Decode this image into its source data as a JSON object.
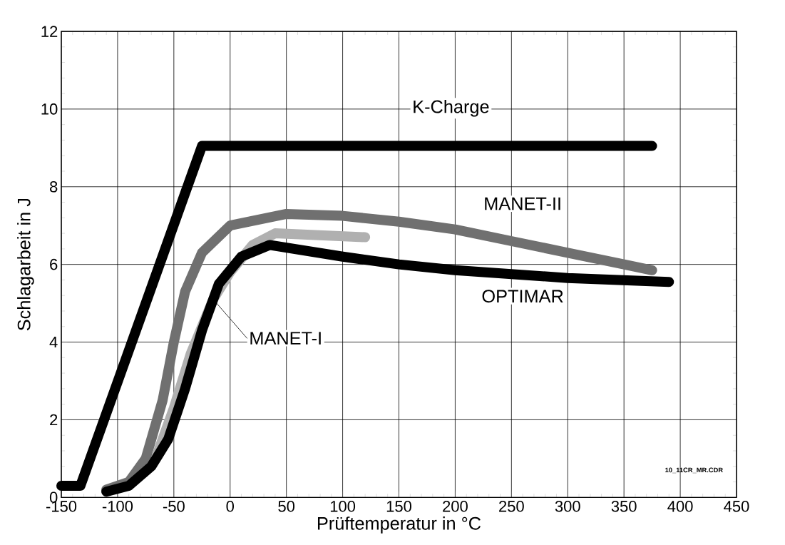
{
  "chart_data": {
    "type": "line",
    "xlabel": "Prüftemperatur in °C",
    "ylabel": "Schlagarbeit in J",
    "xlim": [
      -150,
      450
    ],
    "xticks": [
      -150,
      -100,
      -50,
      0,
      50,
      100,
      150,
      200,
      250,
      300,
      350,
      400,
      450
    ],
    "ylim": [
      0,
      12
    ],
    "yticks": [
      0,
      2,
      4,
      6,
      8,
      10,
      12
    ],
    "grid": true,
    "legend": false,
    "marker": "none",
    "line_style": "solid",
    "annotations": [
      "10_11CR_MR.CDR"
    ],
    "series": [
      {
        "name": "K-Charge",
        "color": "#000000",
        "x": [
          -150,
          -133,
          -25,
          375
        ],
        "values": [
          0.3,
          0.3,
          9.05,
          9.05
        ]
      },
      {
        "name": "MANET-II",
        "color": "#707070",
        "x": [
          -110,
          -90,
          -75,
          -60,
          -50,
          -40,
          -25,
          0,
          50,
          100,
          150,
          200,
          250,
          300,
          350,
          375
        ],
        "values": [
          0.2,
          0.4,
          1.0,
          2.5,
          4.0,
          5.3,
          6.3,
          7.0,
          7.3,
          7.25,
          7.1,
          6.9,
          6.6,
          6.3,
          6.0,
          5.85
        ]
      },
      {
        "name": "MANET-I",
        "color": "#b0b0b0",
        "x": [
          -65,
          -50,
          -35,
          -15,
          0,
          20,
          40,
          120
        ],
        "values": [
          1.1,
          2.3,
          3.7,
          5.1,
          5.8,
          6.5,
          6.8,
          6.7
        ]
      },
      {
        "name": "OPTIMAR",
        "color": "#000000",
        "x": [
          -110,
          -90,
          -70,
          -55,
          -40,
          -25,
          -10,
          10,
          35,
          100,
          150,
          200,
          300,
          390
        ],
        "values": [
          0.15,
          0.3,
          0.8,
          1.5,
          2.8,
          4.3,
          5.5,
          6.2,
          6.5,
          6.2,
          6.0,
          5.85,
          5.65,
          5.55
        ]
      }
    ]
  }
}
